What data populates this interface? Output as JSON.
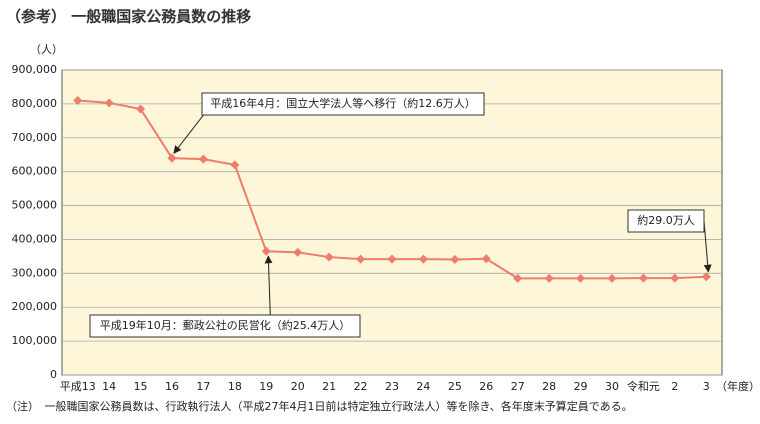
{
  "chart_data": {
    "type": "line",
    "title": "（参考） 一般職国家公務員数の推移",
    "y_axis_label": "（人）",
    "x_axis_label": "（年度）",
    "categories": [
      "平成13",
      "14",
      "15",
      "16",
      "17",
      "18",
      "19",
      "20",
      "21",
      "22",
      "23",
      "24",
      "25",
      "26",
      "27",
      "28",
      "29",
      "30",
      "令和元",
      "2",
      "3"
    ],
    "series": [
      {
        "name": "一般職国家公務員数",
        "color": "#f07c6c",
        "values": [
          810000,
          803000,
          785000,
          640000,
          637000,
          620000,
          365000,
          362000,
          348000,
          342000,
          342000,
          342000,
          341000,
          343000,
          285000,
          285000,
          285000,
          285000,
          286000,
          286000,
          290000
        ]
      }
    ],
    "ylim": [
      0,
      900000
    ],
    "yticks": [
      0,
      {
        "value": 100000,
        "label": "100,000"
      },
      {
        "value": 200000,
        "label": "200,000"
      },
      {
        "value": 300000,
        "label": "300,000"
      },
      {
        "value": 400000,
        "label": "400,000"
      },
      {
        "value": 500000,
        "label": "500,000"
      },
      {
        "value": 600000,
        "label": "600,000"
      },
      {
        "value": 700000,
        "label": "700,000"
      },
      {
        "value": 800000,
        "label": "800,000"
      },
      {
        "value": 900000,
        "label": "900,000"
      }
    ],
    "grid": true,
    "plot_background": "#fdf6d9",
    "annotations": [
      "平成16年4月：国立大学法人等へ移行（約12.6万人）",
      "平成19年10月：郵政公社の民営化（約25.4万人）",
      "約29.0万人"
    ],
    "note": "（注）　一般職国家公務員数は、行政執行法人（平成27年4月1日前は特定独立行政法人）等を除き、各年度末予算定員である。"
  }
}
